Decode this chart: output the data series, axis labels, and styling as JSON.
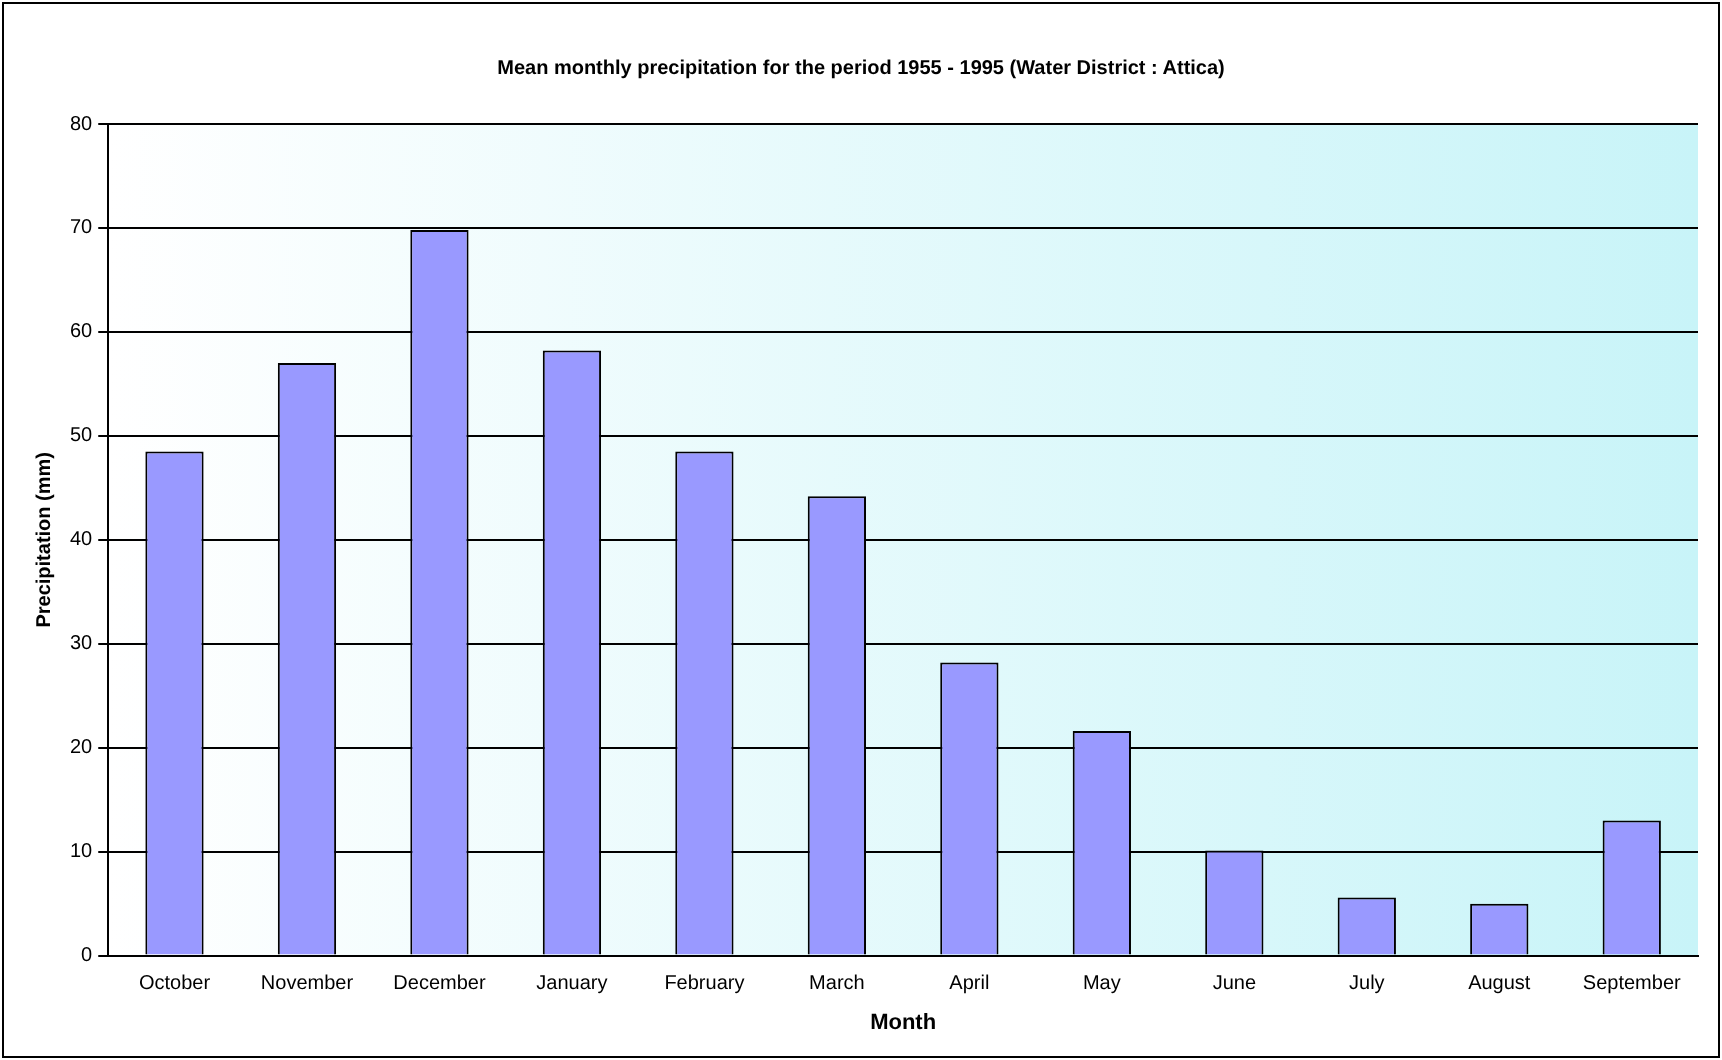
{
  "chart_data": {
    "type": "bar",
    "title": "Mean monthly precipitation for the period 1955 - 1995 (Water District : Attica)",
    "xlabel": "Month",
    "ylabel": "Precipitation (mm)",
    "categories": [
      "October",
      "November",
      "December",
      "January",
      "February",
      "March",
      "April",
      "May",
      "June",
      "July",
      "August",
      "September"
    ],
    "values": [
      48.5,
      57,
      69.8,
      58.2,
      48.5,
      44.2,
      28.2,
      21.6,
      10.1,
      5.6,
      5,
      13
    ],
    "color": "#9999ff",
    "ylim": [
      0,
      80
    ],
    "yticks": [
      0,
      10,
      20,
      30,
      40,
      50,
      60,
      70,
      80
    ],
    "grid": "y",
    "legend": false
  }
}
